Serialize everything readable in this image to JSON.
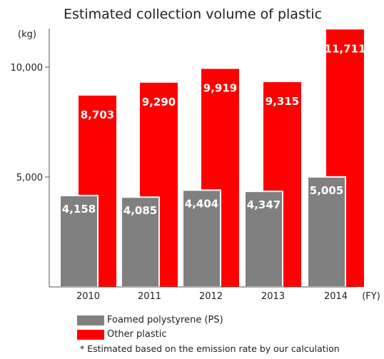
{
  "chart_data": {
    "type": "bar",
    "title": "Estimated collection volume of plastic",
    "ylabel": "(kg)",
    "xlabel": "(FY)",
    "categories": [
      "2010",
      "2011",
      "2012",
      "2013",
      "2014"
    ],
    "series": [
      {
        "name": "Foamed polystyrene (PS)",
        "color": "#808080",
        "values": [
          4158,
          4085,
          4404,
          4347,
          5005
        ]
      },
      {
        "name": "Other plastic",
        "color": "#ff0000",
        "values": [
          8703,
          9290,
          9919,
          9315,
          11711
        ]
      }
    ],
    "data_labels": {
      "Foamed polystyrene (PS)": [
        "4,158",
        "4,085",
        "4,404",
        "4,347",
        "5,005"
      ],
      "Other plastic": [
        "8,703",
        "9,290",
        "9,919",
        "9,315",
        "11,711"
      ]
    },
    "yticks": [
      5000,
      10000
    ],
    "ytick_labels": [
      "5,000",
      "10,000"
    ],
    "ylim": [
      0,
      12000
    ],
    "grid": false,
    "legend_position": "bottom-left"
  },
  "legend": [
    {
      "label": "Foamed polystyrene (PS)",
      "color": "#808080"
    },
    {
      "label": "Other plastic",
      "color": "#ff0000"
    }
  ],
  "footnote": "* Estimated based on the emission rate by our calculation"
}
